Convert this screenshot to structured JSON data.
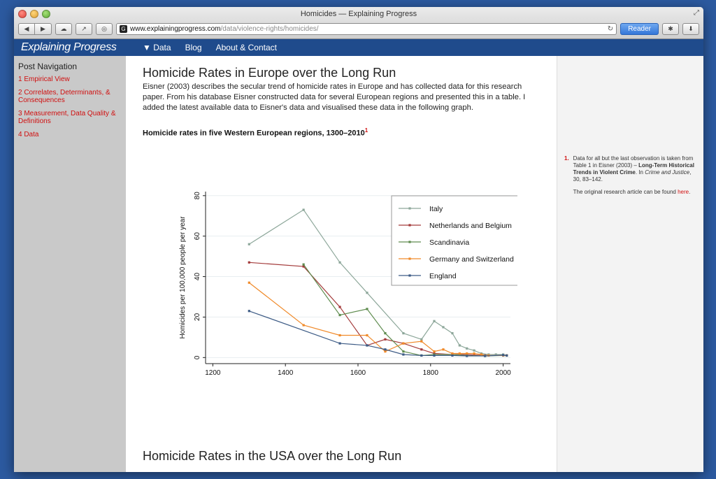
{
  "window": {
    "title": "Homicides — Explaining Progress"
  },
  "toolbar": {
    "url_host": "www.explainingprogress.com",
    "url_path": "/data/violence-rights/homicides/",
    "reader_label": "Reader",
    "favicon_letter": "G"
  },
  "site": {
    "logo": "Explaining Progress"
  },
  "nav": [
    "▼ Data",
    "Blog",
    "About & Contact"
  ],
  "sidebar": {
    "title": "Post Navigation",
    "items": [
      "1 Empirical View",
      "2 Correlates, Determinants, & Consequences",
      "3 Measurement, Data Quality & Definitions",
      "4 Data"
    ]
  },
  "main": {
    "heading": "Homicide Rates in Europe over the Long Run",
    "intro": "Eisner (2003) describes the secular trend of homicide rates in Europe and has collected data for this research paper. From his database Eisner constructed data for several European regions and presented this in a table. I added the latest available data to Eisner's data and visualised these data in the following graph.",
    "chart_title": "Homicide rates in five Western European regions, 1300–2010",
    "chart_footnote": "1",
    "heading2": "Homicide Rates in the USA over the Long Run"
  },
  "notes": {
    "num": "1.",
    "p1_a": "Data for all but the last observation is taken from Table 1 in Eisner (2003) – ",
    "p1_bold": "Long-Term Historical Trends in Violent Crime",
    "p1_b": ". In ",
    "p1_italic": "Crime and Justice",
    "p1_c": ", 30, 83–142.",
    "p2_a": "The original research article can be found ",
    "p2_link": "here",
    "p2_b": "."
  },
  "chart_data": {
    "type": "line",
    "title": "Homicide rates in five Western European regions, 1300–2010",
    "ylabel": "Homicides per 100,000 people per year",
    "xlabel": "",
    "xlim": [
      1180,
      2020
    ],
    "ylim": [
      -3,
      82
    ],
    "xticks": [
      1200,
      1400,
      1600,
      1800,
      2000
    ],
    "yticks": [
      0,
      20,
      40,
      60,
      80
    ],
    "grid": true,
    "legend": "top-right",
    "series": [
      {
        "name": "Italy",
        "color": "#8da79a",
        "points": [
          [
            1300,
            56
          ],
          [
            1450,
            73
          ],
          [
            1550,
            47
          ],
          [
            1625,
            32
          ],
          [
            1725,
            12
          ],
          [
            1775,
            9
          ],
          [
            1810,
            18
          ],
          [
            1835,
            15
          ],
          [
            1860,
            12
          ],
          [
            1880,
            6
          ],
          [
            1900,
            4.5
          ],
          [
            1920,
            3.5
          ],
          [
            1940,
            2
          ],
          [
            1960,
            1.5
          ],
          [
            1980,
            1.5
          ],
          [
            2000,
            1.5
          ],
          [
            2010,
            1
          ]
        ]
      },
      {
        "name": "Netherlands and Belgium",
        "color": "#a33a3a",
        "points": [
          [
            1300,
            47
          ],
          [
            1450,
            45
          ],
          [
            1550,
            25
          ],
          [
            1625,
            6
          ],
          [
            1675,
            9
          ],
          [
            1725,
            7
          ],
          [
            1775,
            4
          ],
          [
            1810,
            2
          ],
          [
            1860,
            1.5
          ],
          [
            1900,
            1.5
          ],
          [
            1950,
            1
          ],
          [
            2000,
            1
          ],
          [
            2010,
            1
          ]
        ]
      },
      {
        "name": "Scandinavia",
        "color": "#5f8c4f",
        "points": [
          [
            1450,
            46
          ],
          [
            1550,
            21
          ],
          [
            1625,
            24
          ],
          [
            1675,
            12
          ],
          [
            1725,
            3
          ],
          [
            1775,
            1
          ],
          [
            1810,
            1.5
          ],
          [
            1860,
            1.5
          ],
          [
            1900,
            1
          ],
          [
            1950,
            0.8
          ],
          [
            2000,
            1
          ],
          [
            2010,
            1
          ]
        ]
      },
      {
        "name": "Germany and Switzerland",
        "color": "#f08a2a",
        "points": [
          [
            1300,
            37
          ],
          [
            1450,
            16
          ],
          [
            1550,
            11
          ],
          [
            1625,
            11
          ],
          [
            1675,
            3
          ],
          [
            1725,
            7
          ],
          [
            1775,
            8
          ],
          [
            1810,
            3
          ],
          [
            1835,
            4
          ],
          [
            1860,
            2
          ],
          [
            1880,
            2
          ],
          [
            1900,
            2
          ],
          [
            1920,
            2
          ],
          [
            1940,
            1.5
          ],
          [
            1960,
            1
          ],
          [
            2000,
            1
          ],
          [
            2010,
            1
          ]
        ]
      },
      {
        "name": "England",
        "color": "#3e5c86",
        "points": [
          [
            1300,
            23
          ],
          [
            1550,
            7
          ],
          [
            1625,
            6
          ],
          [
            1675,
            4
          ],
          [
            1725,
            1.5
          ],
          [
            1775,
            1
          ],
          [
            1810,
            1
          ],
          [
            1860,
            1
          ],
          [
            1900,
            0.8
          ],
          [
            1950,
            0.8
          ],
          [
            2000,
            1.2
          ],
          [
            2010,
            1
          ]
        ]
      }
    ]
  }
}
